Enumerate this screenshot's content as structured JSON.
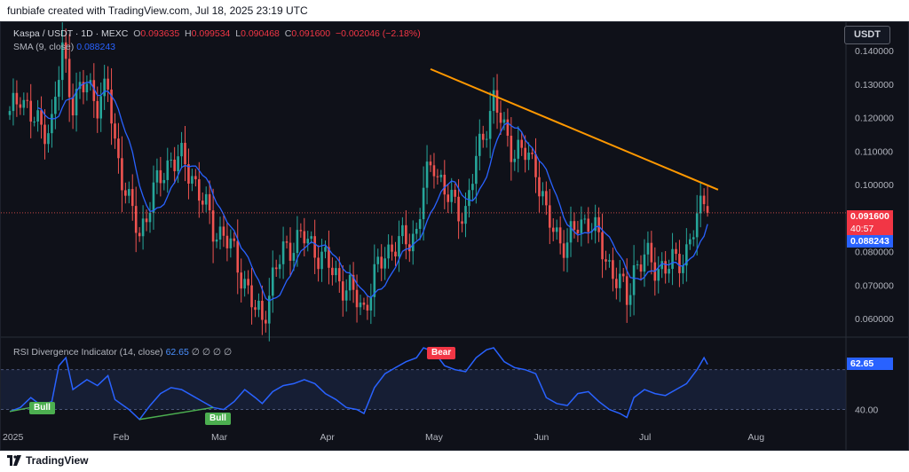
{
  "header": {
    "credit": "funbiafe created with TradingView.com, Jul 18, 2025 23:19 UTC"
  },
  "legend": {
    "symbol": "Kaspa / USDT · 1D · MEXC",
    "open_label": "O",
    "open": "0.093635",
    "high_label": "H",
    "high": "0.099534",
    "low_label": "L",
    "low": "0.090468",
    "close_label": "C",
    "close": "0.091600",
    "change": "−0.002046 (−2.18%)",
    "sma_label": "SMA (9, close)",
    "sma_value": "0.088243"
  },
  "currency_button": "USDT",
  "price_tags": {
    "last_price": "0.091600",
    "countdown": "40:57",
    "sma_price": "0.088243"
  },
  "rsi": {
    "label": "RSI Divergence Indicator (14, close)",
    "value": "62.65",
    "placeholders": "∅ ∅ ∅ ∅",
    "level_label": "40.00"
  },
  "badges": {
    "bear": "Bear",
    "bull_1": "Bull",
    "bull_2": "Bull"
  },
  "footer": {
    "logo_text": "TradingView"
  },
  "colors": {
    "up": "#26a69a",
    "down": "#ef5350",
    "sma": "#2962ff",
    "trendline": "#ff9800",
    "rsi_line": "#2962ff",
    "bear_badge": "#f23645",
    "bull_badge": "#4caf50"
  },
  "chart_data": {
    "type": "candlestick",
    "title": "Kaspa / USDT · 1D · MEXC",
    "price_axis": {
      "ticks": [
        "0.140000",
        "0.130000",
        "0.120000",
        "0.110000",
        "0.100000",
        "0.080000",
        "0.070000",
        "0.060000"
      ],
      "tick_values": [
        0.14,
        0.13,
        0.12,
        0.11,
        0.1,
        0.08,
        0.07,
        0.06
      ],
      "range": [
        0.0545,
        0.1485
      ]
    },
    "time_axis": {
      "ticks": [
        "2025",
        "Feb",
        "Mar",
        "Apr",
        "May",
        "Jun",
        "Jul",
        "Aug"
      ],
      "tick_days": [
        0,
        31,
        59,
        90,
        120,
        151,
        181,
        212
      ]
    },
    "first_day": "2025-01-01",
    "close_keyframes": [
      [
        0,
        0.12
      ],
      [
        3,
        0.128
      ],
      [
        6,
        0.12
      ],
      [
        9,
        0.117
      ],
      [
        12,
        0.118
      ],
      [
        15,
        0.14
      ],
      [
        18,
        0.125
      ],
      [
        22,
        0.13
      ],
      [
        25,
        0.125
      ],
      [
        28,
        0.128
      ],
      [
        30,
        0.112
      ],
      [
        34,
        0.094
      ],
      [
        37,
        0.085
      ],
      [
        40,
        0.095
      ],
      [
        43,
        0.102
      ],
      [
        46,
        0.108
      ],
      [
        49,
        0.107
      ],
      [
        52,
        0.103
      ],
      [
        55,
        0.095
      ],
      [
        58,
        0.087
      ],
      [
        61,
        0.085
      ],
      [
        64,
        0.079
      ],
      [
        67,
        0.071
      ],
      [
        70,
        0.062
      ],
      [
        72,
        0.06
      ],
      [
        75,
        0.072
      ],
      [
        78,
        0.08
      ],
      [
        81,
        0.083
      ],
      [
        84,
        0.084
      ],
      [
        87,
        0.081
      ],
      [
        90,
        0.077
      ],
      [
        93,
        0.073
      ],
      [
        96,
        0.069
      ],
      [
        99,
        0.066
      ],
      [
        101,
        0.063
      ],
      [
        104,
        0.072
      ],
      [
        107,
        0.08
      ],
      [
        110,
        0.082
      ],
      [
        113,
        0.083
      ],
      [
        116,
        0.086
      ],
      [
        118,
        0.099
      ],
      [
        121,
        0.107
      ],
      [
        124,
        0.098
      ],
      [
        127,
        0.093
      ],
      [
        130,
        0.092
      ],
      [
        133,
        0.107
      ],
      [
        136,
        0.119
      ],
      [
        138,
        0.125
      ],
      [
        141,
        0.116
      ],
      [
        144,
        0.11
      ],
      [
        147,
        0.109
      ],
      [
        150,
        0.106
      ],
      [
        153,
        0.09
      ],
      [
        156,
        0.085
      ],
      [
        159,
        0.082
      ],
      [
        162,
        0.088
      ],
      [
        165,
        0.09
      ],
      [
        168,
        0.083
      ],
      [
        171,
        0.076
      ],
      [
        174,
        0.07
      ],
      [
        176,
        0.066
      ],
      [
        178,
        0.075
      ],
      [
        181,
        0.078
      ],
      [
        184,
        0.076
      ],
      [
        187,
        0.075
      ],
      [
        190,
        0.077
      ],
      [
        193,
        0.08
      ],
      [
        196,
        0.089
      ],
      [
        198,
        0.097
      ],
      [
        199,
        0.0916
      ]
    ],
    "last_candle": {
      "open": 0.093635,
      "high": 0.099534,
      "low": 0.090468,
      "close": 0.0916
    },
    "sma": {
      "period": 9,
      "last_value": 0.088243
    },
    "trendline": {
      "from": {
        "day": 120,
        "price": 0.1345
      },
      "to": {
        "day": 202,
        "price": 0.0985
      }
    },
    "rsi": {
      "range": [
        30,
        75
      ],
      "levels": [
        60,
        40
      ],
      "level_labels": [
        "40.00"
      ],
      "last_value": 62.65,
      "points": [
        [
          0,
          39
        ],
        [
          3,
          41
        ],
        [
          6,
          46
        ],
        [
          9,
          42
        ],
        [
          12,
          44
        ],
        [
          14,
          62
        ],
        [
          16,
          66
        ],
        [
          18,
          50
        ],
        [
          22,
          55
        ],
        [
          25,
          52
        ],
        [
          28,
          57
        ],
        [
          30,
          45
        ],
        [
          34,
          40
        ],
        [
          37,
          35
        ],
        [
          40,
          42
        ],
        [
          43,
          48
        ],
        [
          46,
          51
        ],
        [
          49,
          50
        ],
        [
          52,
          47
        ],
        [
          55,
          44
        ],
        [
          58,
          41
        ],
        [
          61,
          40
        ],
        [
          64,
          44
        ],
        [
          67,
          50
        ],
        [
          70,
          46
        ],
        [
          72,
          43
        ],
        [
          75,
          49
        ],
        [
          78,
          52
        ],
        [
          81,
          53
        ],
        [
          84,
          55
        ],
        [
          87,
          53
        ],
        [
          90,
          48
        ],
        [
          93,
          45
        ],
        [
          96,
          41
        ],
        [
          99,
          40
        ],
        [
          101,
          38
        ],
        [
          104,
          51
        ],
        [
          107,
          58
        ],
        [
          110,
          61
        ],
        [
          113,
          64
        ],
        [
          116,
          66
        ],
        [
          118,
          71
        ],
        [
          121,
          69
        ],
        [
          124,
          62
        ],
        [
          127,
          60
        ],
        [
          130,
          59
        ],
        [
          133,
          66
        ],
        [
          136,
          70
        ],
        [
          138,
          71
        ],
        [
          141,
          64
        ],
        [
          144,
          61
        ],
        [
          147,
          60
        ],
        [
          150,
          58
        ],
        [
          153,
          46
        ],
        [
          156,
          43
        ],
        [
          159,
          42
        ],
        [
          162,
          48
        ],
        [
          165,
          49
        ],
        [
          168,
          44
        ],
        [
          171,
          40
        ],
        [
          174,
          38
        ],
        [
          176,
          36
        ],
        [
          178,
          46
        ],
        [
          181,
          50
        ],
        [
          184,
          48
        ],
        [
          187,
          47
        ],
        [
          190,
          50
        ],
        [
          193,
          53
        ],
        [
          196,
          60
        ],
        [
          198,
          66
        ],
        [
          199,
          62.65
        ]
      ],
      "bull_divergences": [
        {
          "from": [
            0,
            39
          ],
          "to": [
            9,
            42
          ]
        },
        {
          "from": [
            37,
            35
          ],
          "to": [
            58,
            41
          ]
        }
      ],
      "bear_divergence": {
        "day": 121
      }
    }
  }
}
